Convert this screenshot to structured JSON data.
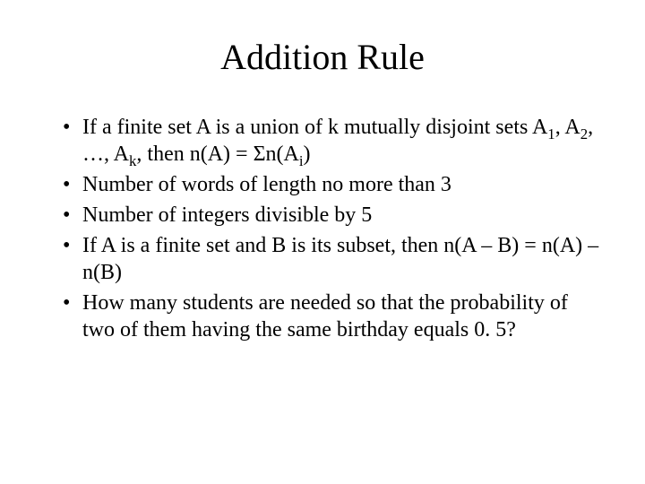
{
  "title": "Addition Rule",
  "bullets": [
    {
      "prefix": "If a finite set A is a union of k mutually disjoint sets A",
      "s1": "1",
      "t1": ", A",
      "s2": "2",
      "t2": ", …, A",
      "s3": "k",
      "t3": ", then n(A) = Σn(A",
      "s4": "i",
      "t4": ")"
    },
    {
      "text": "Number of words of length no more than 3"
    },
    {
      "text": "Number of integers divisible by 5"
    },
    {
      "text": "If A is a finite set and B is its subset, then n(A – B) = n(A) – n(B)"
    },
    {
      "text": "How many students are needed so that the probability of two of them having the same birthday equals 0. 5?"
    }
  ],
  "colors": {
    "background": "#ffffff",
    "text": "#000000"
  },
  "typography": {
    "title_fontsize": 40,
    "body_fontsize": 24,
    "font_family": "Times New Roman"
  }
}
